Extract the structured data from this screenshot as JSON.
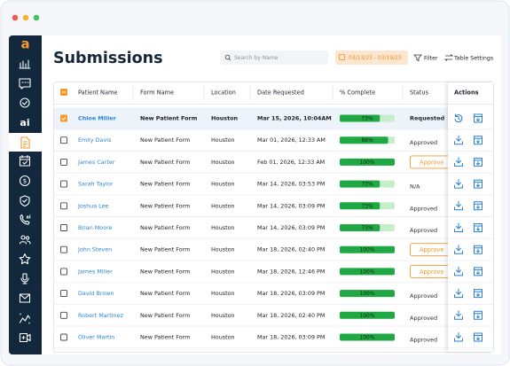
{
  "header": {
    "title": "Submissions",
    "search_placeholder": "Search by Name",
    "date_range": "03/13/23 - 03/19/23",
    "filter": "Filter",
    "table_settings": "Table Settings"
  },
  "sidebar": {
    "logo": "a",
    "ai_label": "ai",
    "phone_label": "ai"
  },
  "table": {
    "columns": [
      "Patient Name",
      "Form Name",
      "Location",
      "Date Requested",
      "% Complete",
      "Status",
      "Actions"
    ],
    "rows": [
      {
        "patient": "Chloe Miller",
        "form": "New Patient Form",
        "location": "Houston",
        "date": "Mar 15, 2026, 10:04AM",
        "complete": 73,
        "complete_label": "73%",
        "status": "Requested",
        "selected": true
      },
      {
        "patient": "Emily Davis",
        "form": "New Patient Form",
        "location": "Houston",
        "date": "Mar 01, 2026, 12:33 AM",
        "complete": 88,
        "complete_label": "88%",
        "status": "Approved"
      },
      {
        "patient": "James Carter",
        "form": "New Patient Form",
        "location": "Houston",
        "date": "Feb 01, 2026, 12:33 AM",
        "complete": 100,
        "complete_label": "100%",
        "action": "Approve"
      },
      {
        "patient": "Sarah Taylor",
        "form": "New Patient Form",
        "location": "Houston",
        "date": "Mar 14, 2026, 03:53 PM",
        "complete": 73,
        "complete_label": "73%",
        "status": "N/A"
      },
      {
        "patient": "Joshua Lee",
        "form": "New Patient Form",
        "location": "Houston",
        "date": "Mar 14, 2026, 03:09 PM",
        "complete": 73,
        "complete_label": "73%",
        "status": "Approved"
      },
      {
        "patient": "Brian Moore",
        "form": "New Patient Form",
        "location": "Houston",
        "date": "Mar 14, 2026, 03:09 PM",
        "complete": 73,
        "complete_label": "73%",
        "status": "Approved"
      },
      {
        "patient": "John Steven",
        "form": "New Patient Form",
        "location": "Houston",
        "date": "Mar 18, 2026, 02:40 PM",
        "complete": 100,
        "complete_label": "100%",
        "action": "Approve"
      },
      {
        "patient": "James Miller",
        "form": "New Patient Form",
        "location": "Houston",
        "date": "Mar 18, 2026, 12:46 PM",
        "complete": 100,
        "complete_label": "100%",
        "action": "Approve"
      },
      {
        "patient": "David Brown",
        "form": "New Patient Form",
        "location": "Houston",
        "date": "Mar 18, 2026, 03:09 PM",
        "complete": 100,
        "complete_label": "100%",
        "status": "Approved"
      },
      {
        "patient": "Robert Martinez",
        "form": "New Patient Form",
        "location": "Houston",
        "date": "Mar 18, 2026, 02:40 PM",
        "complete": 100,
        "complete_label": "100%",
        "status": "Approved"
      },
      {
        "patient": "Oliver Martin",
        "form": "New Patient Form",
        "location": "Houston",
        "date": "Mar 18, 2026, 03:09 PM",
        "complete": 100,
        "complete_label": "100%",
        "status": "Approved"
      }
    ]
  }
}
